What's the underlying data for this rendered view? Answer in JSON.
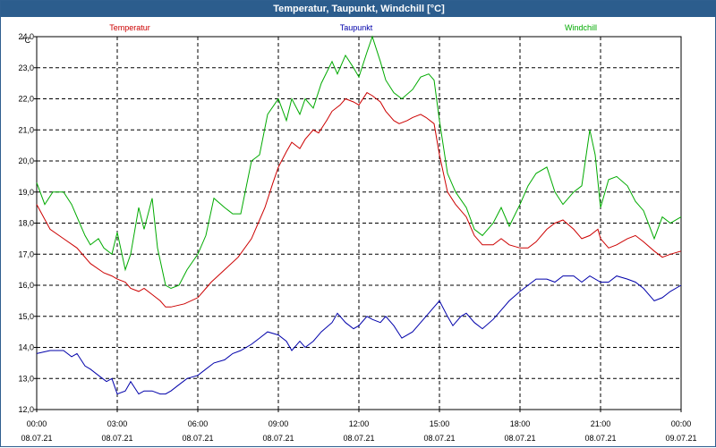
{
  "window": {
    "title": "Temperatur, Taupunkt, Windchill [°C]"
  },
  "chart_data": {
    "type": "line",
    "title": "Temperatur, Taupunkt, Windchill [°C]",
    "ylabel": "°C",
    "xlabel": "",
    "ylim": [
      12.0,
      24.0
    ],
    "xlim": [
      0,
      24
    ],
    "grid": true,
    "legend_position": "top",
    "y_ticks": [
      "12,0",
      "13,0",
      "14,0",
      "15,0",
      "16,0",
      "17,0",
      "18,0",
      "19,0",
      "20,0",
      "21,0",
      "22,0",
      "23,0",
      "24,0"
    ],
    "x_tick_times": [
      "00:00",
      "03:00",
      "06:00",
      "09:00",
      "12:00",
      "15:00",
      "18:00",
      "21:00",
      "00:00"
    ],
    "x_tick_dates": [
      "08.07.21",
      "08.07.21",
      "08.07.21",
      "08.07.21",
      "08.07.21",
      "08.07.21",
      "08.07.21",
      "08.07.21",
      "09.07.21"
    ],
    "series": [
      {
        "name": "Temperatur",
        "color": "#cc0000",
        "points": [
          [
            0.0,
            18.6
          ],
          [
            0.5,
            17.8
          ],
          [
            1.0,
            17.5
          ],
          [
            1.5,
            17.2
          ],
          [
            2.0,
            16.7
          ],
          [
            2.5,
            16.4
          ],
          [
            2.8,
            16.3
          ],
          [
            3.0,
            16.2
          ],
          [
            3.3,
            16.1
          ],
          [
            3.5,
            15.9
          ],
          [
            3.8,
            15.8
          ],
          [
            4.0,
            15.9
          ],
          [
            4.3,
            15.7
          ],
          [
            4.6,
            15.5
          ],
          [
            4.8,
            15.3
          ],
          [
            5.0,
            15.3
          ],
          [
            5.5,
            15.4
          ],
          [
            6.0,
            15.6
          ],
          [
            6.3,
            15.9
          ],
          [
            6.5,
            16.1
          ],
          [
            7.0,
            16.5
          ],
          [
            7.5,
            16.9
          ],
          [
            8.0,
            17.5
          ],
          [
            8.5,
            18.5
          ],
          [
            8.8,
            19.3
          ],
          [
            9.0,
            19.8
          ],
          [
            9.3,
            20.3
          ],
          [
            9.5,
            20.6
          ],
          [
            9.8,
            20.4
          ],
          [
            10.0,
            20.7
          ],
          [
            10.3,
            21.0
          ],
          [
            10.5,
            20.9
          ],
          [
            10.8,
            21.3
          ],
          [
            11.0,
            21.6
          ],
          [
            11.3,
            21.8
          ],
          [
            11.5,
            22.0
          ],
          [
            11.8,
            21.9
          ],
          [
            12.0,
            21.8
          ],
          [
            12.3,
            22.2
          ],
          [
            12.5,
            22.1
          ],
          [
            12.8,
            21.9
          ],
          [
            13.0,
            21.6
          ],
          [
            13.3,
            21.3
          ],
          [
            13.5,
            21.2
          ],
          [
            13.8,
            21.3
          ],
          [
            14.0,
            21.4
          ],
          [
            14.3,
            21.5
          ],
          [
            14.5,
            21.4
          ],
          [
            14.8,
            21.2
          ],
          [
            15.0,
            20.2
          ],
          [
            15.3,
            19.0
          ],
          [
            15.6,
            18.6
          ],
          [
            16.0,
            18.2
          ],
          [
            16.3,
            17.6
          ],
          [
            16.6,
            17.3
          ],
          [
            17.0,
            17.3
          ],
          [
            17.3,
            17.5
          ],
          [
            17.6,
            17.3
          ],
          [
            18.0,
            17.2
          ],
          [
            18.3,
            17.2
          ],
          [
            18.6,
            17.4
          ],
          [
            19.0,
            17.8
          ],
          [
            19.3,
            18.0
          ],
          [
            19.6,
            18.1
          ],
          [
            20.0,
            17.8
          ],
          [
            20.3,
            17.5
          ],
          [
            20.6,
            17.6
          ],
          [
            20.9,
            17.8
          ],
          [
            21.0,
            17.5
          ],
          [
            21.3,
            17.2
          ],
          [
            21.6,
            17.3
          ],
          [
            22.0,
            17.5
          ],
          [
            22.3,
            17.6
          ],
          [
            22.6,
            17.4
          ],
          [
            23.0,
            17.1
          ],
          [
            23.3,
            16.9
          ],
          [
            23.6,
            17.0
          ],
          [
            24.0,
            17.1
          ]
        ]
      },
      {
        "name": "Taupunkt",
        "color": "#0000aa",
        "points": [
          [
            0.0,
            13.8
          ],
          [
            0.5,
            13.9
          ],
          [
            1.0,
            13.9
          ],
          [
            1.3,
            13.7
          ],
          [
            1.5,
            13.8
          ],
          [
            1.8,
            13.4
          ],
          [
            2.0,
            13.3
          ],
          [
            2.3,
            13.1
          ],
          [
            2.6,
            12.9
          ],
          [
            2.8,
            13.0
          ],
          [
            3.0,
            12.5
          ],
          [
            3.3,
            12.6
          ],
          [
            3.5,
            12.9
          ],
          [
            3.8,
            12.5
          ],
          [
            4.0,
            12.6
          ],
          [
            4.3,
            12.6
          ],
          [
            4.6,
            12.5
          ],
          [
            4.8,
            12.5
          ],
          [
            5.0,
            12.6
          ],
          [
            5.3,
            12.8
          ],
          [
            5.6,
            13.0
          ],
          [
            6.0,
            13.1
          ],
          [
            6.3,
            13.3
          ],
          [
            6.6,
            13.5
          ],
          [
            7.0,
            13.6
          ],
          [
            7.3,
            13.8
          ],
          [
            7.6,
            13.9
          ],
          [
            8.0,
            14.1
          ],
          [
            8.3,
            14.3
          ],
          [
            8.6,
            14.5
          ],
          [
            9.0,
            14.4
          ],
          [
            9.3,
            14.2
          ],
          [
            9.5,
            13.9
          ],
          [
            9.8,
            14.2
          ],
          [
            10.0,
            14.0
          ],
          [
            10.3,
            14.2
          ],
          [
            10.6,
            14.5
          ],
          [
            11.0,
            14.8
          ],
          [
            11.2,
            15.1
          ],
          [
            11.5,
            14.8
          ],
          [
            11.8,
            14.6
          ],
          [
            12.0,
            14.7
          ],
          [
            12.3,
            15.0
          ],
          [
            12.5,
            14.9
          ],
          [
            12.8,
            14.8
          ],
          [
            13.0,
            15.0
          ],
          [
            13.3,
            14.7
          ],
          [
            13.6,
            14.3
          ],
          [
            14.0,
            14.5
          ],
          [
            14.3,
            14.8
          ],
          [
            14.6,
            15.1
          ],
          [
            14.8,
            15.3
          ],
          [
            15.0,
            15.5
          ],
          [
            15.3,
            15.0
          ],
          [
            15.5,
            14.7
          ],
          [
            15.8,
            15.0
          ],
          [
            16.0,
            15.1
          ],
          [
            16.3,
            14.8
          ],
          [
            16.6,
            14.6
          ],
          [
            17.0,
            14.9
          ],
          [
            17.3,
            15.2
          ],
          [
            17.6,
            15.5
          ],
          [
            18.0,
            15.8
          ],
          [
            18.3,
            16.0
          ],
          [
            18.6,
            16.2
          ],
          [
            19.0,
            16.2
          ],
          [
            19.3,
            16.1
          ],
          [
            19.6,
            16.3
          ],
          [
            20.0,
            16.3
          ],
          [
            20.3,
            16.1
          ],
          [
            20.6,
            16.3
          ],
          [
            21.0,
            16.1
          ],
          [
            21.3,
            16.1
          ],
          [
            21.6,
            16.3
          ],
          [
            22.0,
            16.2
          ],
          [
            22.3,
            16.1
          ],
          [
            22.6,
            15.9
          ],
          [
            23.0,
            15.5
          ],
          [
            23.3,
            15.6
          ],
          [
            23.6,
            15.8
          ],
          [
            24.0,
            16.0
          ]
        ]
      },
      {
        "name": "Windchill",
        "color": "#00aa00",
        "points": [
          [
            0.0,
            19.3
          ],
          [
            0.3,
            18.6
          ],
          [
            0.6,
            19.0
          ],
          [
            1.0,
            19.0
          ],
          [
            1.3,
            18.6
          ],
          [
            1.6,
            18.0
          ],
          [
            1.8,
            17.6
          ],
          [
            2.0,
            17.3
          ],
          [
            2.3,
            17.5
          ],
          [
            2.5,
            17.2
          ],
          [
            2.8,
            17.0
          ],
          [
            3.0,
            17.7
          ],
          [
            3.3,
            16.5
          ],
          [
            3.5,
            17.0
          ],
          [
            3.8,
            18.5
          ],
          [
            4.0,
            17.8
          ],
          [
            4.3,
            18.8
          ],
          [
            4.5,
            17.2
          ],
          [
            4.8,
            16.0
          ],
          [
            5.0,
            15.9
          ],
          [
            5.3,
            16.0
          ],
          [
            5.6,
            16.5
          ],
          [
            6.0,
            17.0
          ],
          [
            6.3,
            17.6
          ],
          [
            6.6,
            18.8
          ],
          [
            7.0,
            18.5
          ],
          [
            7.3,
            18.3
          ],
          [
            7.6,
            18.3
          ],
          [
            8.0,
            20.0
          ],
          [
            8.3,
            20.2
          ],
          [
            8.6,
            21.5
          ],
          [
            9.0,
            22.0
          ],
          [
            9.3,
            21.3
          ],
          [
            9.5,
            22.0
          ],
          [
            9.8,
            21.5
          ],
          [
            10.0,
            22.0
          ],
          [
            10.3,
            21.7
          ],
          [
            10.6,
            22.5
          ],
          [
            11.0,
            23.2
          ],
          [
            11.2,
            22.8
          ],
          [
            11.5,
            23.4
          ],
          [
            11.8,
            23.0
          ],
          [
            12.0,
            22.7
          ],
          [
            12.3,
            23.5
          ],
          [
            12.5,
            24.0
          ],
          [
            12.8,
            23.2
          ],
          [
            13.0,
            22.6
          ],
          [
            13.3,
            22.2
          ],
          [
            13.6,
            22.0
          ],
          [
            14.0,
            22.3
          ],
          [
            14.3,
            22.7
          ],
          [
            14.6,
            22.8
          ],
          [
            14.8,
            22.6
          ],
          [
            15.0,
            21.3
          ],
          [
            15.3,
            19.6
          ],
          [
            15.6,
            19.0
          ],
          [
            16.0,
            18.5
          ],
          [
            16.3,
            17.8
          ],
          [
            16.6,
            17.6
          ],
          [
            17.0,
            18.0
          ],
          [
            17.3,
            18.5
          ],
          [
            17.6,
            17.9
          ],
          [
            18.0,
            18.6
          ],
          [
            18.3,
            19.2
          ],
          [
            18.6,
            19.6
          ],
          [
            19.0,
            19.8
          ],
          [
            19.3,
            19.0
          ],
          [
            19.6,
            18.6
          ],
          [
            20.0,
            19.0
          ],
          [
            20.3,
            19.2
          ],
          [
            20.6,
            21.0
          ],
          [
            20.8,
            20.2
          ],
          [
            21.0,
            18.5
          ],
          [
            21.3,
            19.4
          ],
          [
            21.6,
            19.5
          ],
          [
            22.0,
            19.2
          ],
          [
            22.3,
            18.7
          ],
          [
            22.6,
            18.4
          ],
          [
            23.0,
            17.5
          ],
          [
            23.3,
            18.2
          ],
          [
            23.6,
            18.0
          ],
          [
            24.0,
            18.2
          ]
        ]
      }
    ]
  }
}
